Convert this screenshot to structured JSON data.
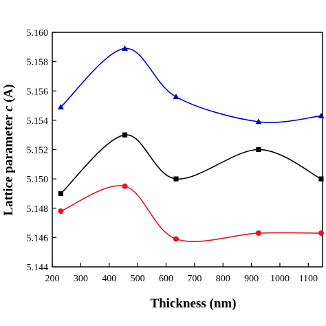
{
  "chart_data": {
    "type": "line",
    "xlabel": "Thickness (nm)",
    "ylabel": "Lattice parameter",
    "ylabel_italic": "c",
    "ylabel_unit": "(A)",
    "xlim": [
      200,
      1150
    ],
    "ylim": [
      5.144,
      5.16
    ],
    "xticks": [
      200,
      300,
      400,
      500,
      600,
      700,
      800,
      900,
      1000,
      1100
    ],
    "yticks": [
      5.144,
      5.146,
      5.148,
      5.15,
      5.152,
      5.154,
      5.156,
      5.158,
      5.16
    ],
    "x": [
      230,
      455,
      635,
      925,
      1145
    ],
    "grid": false,
    "series": [
      {
        "marker": "triangle",
        "color": "#0000cc",
        "values": [
          5.1549,
          5.1589,
          5.1556,
          5.1539,
          5.1543
        ]
      },
      {
        "marker": "square",
        "color": "#000000",
        "values": [
          5.149,
          5.153,
          5.15,
          5.152,
          5.15
        ]
      },
      {
        "marker": "circle",
        "color": "#e8141b",
        "values": [
          5.1478,
          5.1495,
          5.1459,
          5.1463,
          5.1463
        ]
      }
    ]
  }
}
